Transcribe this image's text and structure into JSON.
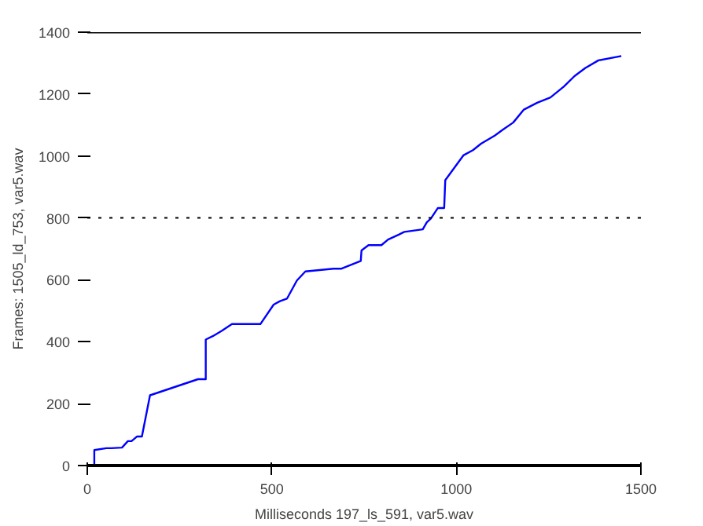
{
  "chart_data": {
    "type": "line",
    "xlabel": "Milliseconds 197_ls_591, var5.wav",
    "ylabel": "Frames: 1505_ld_753, var5.wav",
    "x": [
      0,
      19,
      19,
      52,
      65,
      94,
      110,
      120,
      135,
      148,
      170,
      300,
      321,
      321,
      340,
      364,
      392,
      469,
      505,
      522,
      541,
      568,
      591,
      667,
      689,
      741,
      743,
      762,
      797,
      815,
      844,
      859,
      909,
      920,
      931,
      950,
      967,
      970,
      1019,
      1045,
      1067,
      1104,
      1125,
      1154,
      1183,
      1219,
      1255,
      1291,
      1320,
      1349,
      1385,
      1447
    ],
    "series": [
      {
        "color": "#0000ff",
        "values": [
          0,
          0,
          50,
          56,
          56,
          58,
          79,
          79,
          94,
          94,
          227,
          279,
          279,
          407,
          418,
          435,
          457,
          457,
          520,
          531,
          539,
          598,
          627,
          636,
          636,
          661,
          695,
          712,
          712,
          730,
          746,
          755,
          763,
          786,
          798,
          832,
          832,
          922,
          1002,
          1019,
          1040,
          1066,
          1084,
          1108,
          1150,
          1172,
          1189,
          1224,
          1258,
          1284,
          1309,
          1323
        ]
      }
    ],
    "xlim": [
      0,
      1500
    ],
    "ylim": [
      0,
      1400
    ],
    "xticks": [
      0,
      500,
      1000,
      1500
    ],
    "yticks": [
      0,
      200,
      400,
      600,
      800,
      1000,
      1200,
      1400
    ],
    "ref_lines": [
      {
        "axis": "y",
        "value": 1400,
        "color": "#000000",
        "line_style": "solid"
      },
      {
        "axis": "y",
        "value": 800,
        "color": "#000000",
        "line_style": "dotted"
      }
    ],
    "grid": false
  }
}
